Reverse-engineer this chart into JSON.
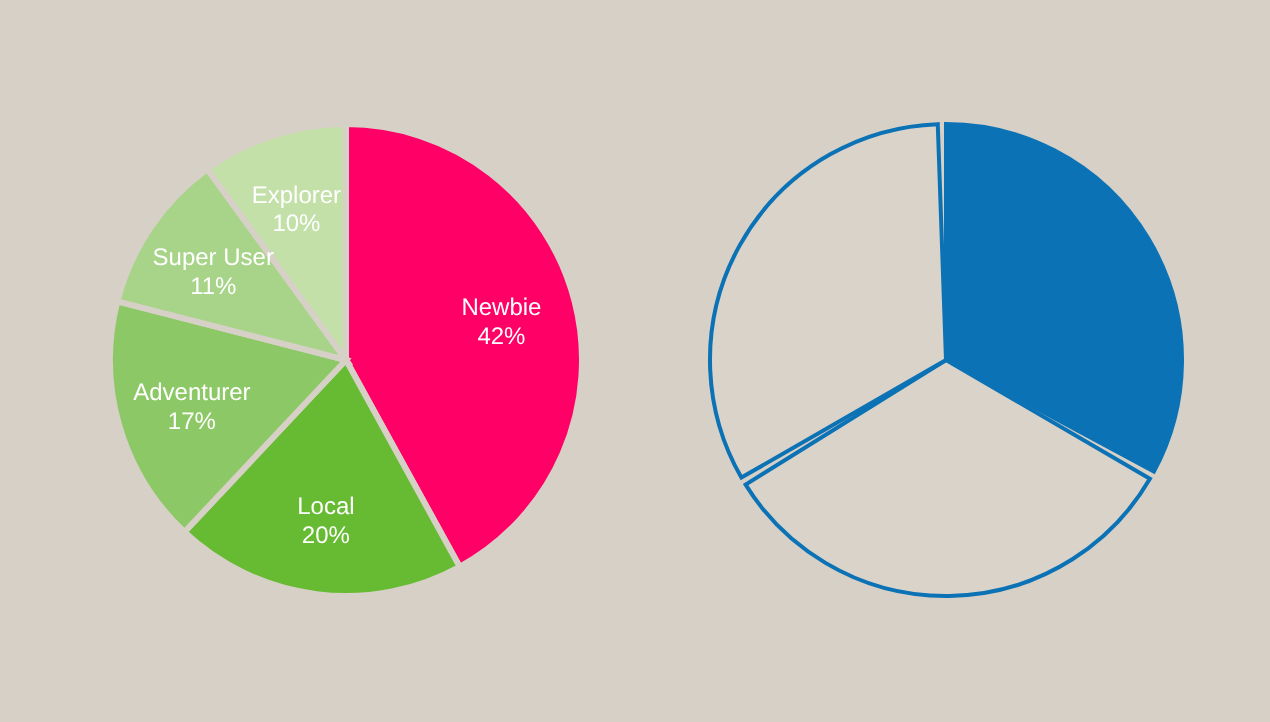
{
  "chart_data": [
    {
      "type": "pie",
      "categories": [
        "Newbie",
        "Local",
        "Adventurer",
        "Super User",
        "Explorer"
      ],
      "values": [
        42,
        20,
        17,
        11,
        10
      ],
      "value_labels": [
        "42%",
        "20%",
        "17%",
        "11%",
        "10%"
      ],
      "colors": [
        "#ff0066",
        "#66bb33",
        "#8dc866",
        "#a7d488",
        "#c3e0a9"
      ],
      "legend": false
    },
    {
      "type": "pie",
      "categories": [
        null,
        null,
        null
      ],
      "values": [
        33.4,
        33.3,
        33.3
      ],
      "colors": [
        "#0b72b5",
        "#d9d3c9",
        "#d9d3c9"
      ],
      "legend": false
    }
  ]
}
